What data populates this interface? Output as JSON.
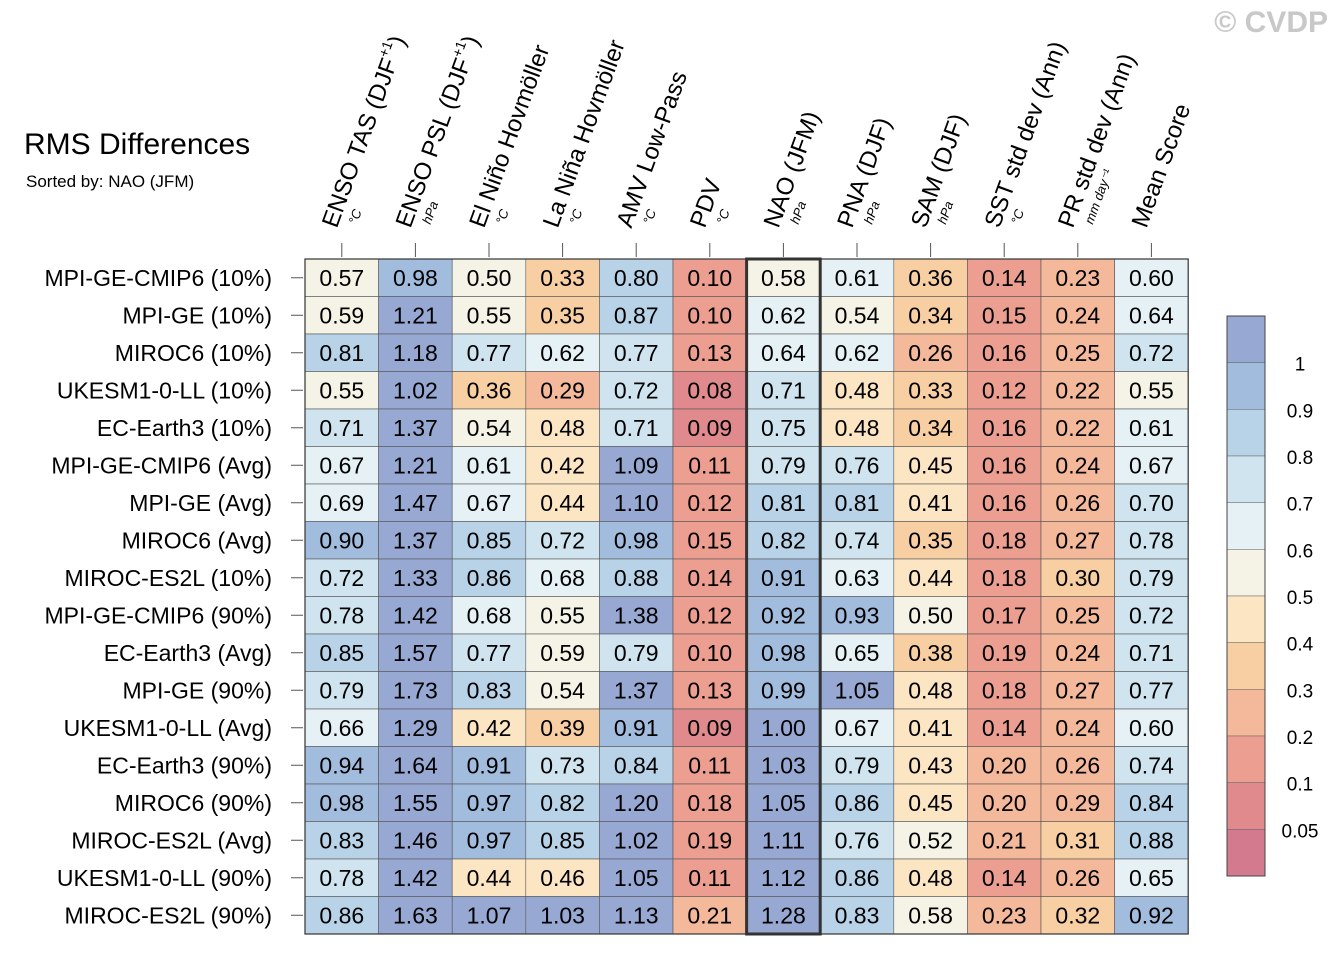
{
  "watermark": "© CVDP",
  "chart_data": {
    "type": "heatmap",
    "title": "RMS Differences",
    "subtitle": "Sorted by: NAO (JFM)",
    "highlight_column": 6,
    "columns": [
      {
        "label": "ENSO TAS (DJF",
        "sup": "+1",
        "close": ")",
        "unit": "°C"
      },
      {
        "label": "ENSO PSL (DJF",
        "sup": "+1",
        "close": ")",
        "unit": "hPa"
      },
      {
        "label": "El Niño Hovmöller",
        "sup": "",
        "close": "",
        "unit": "°C"
      },
      {
        "label": "La Niña Hovmöller",
        "sup": "",
        "close": "",
        "unit": "°C"
      },
      {
        "label": "AMV Low-Pass",
        "sup": "",
        "close": "",
        "unit": "°C"
      },
      {
        "label": "PDV",
        "sup": "",
        "close": "",
        "unit": "°C"
      },
      {
        "label": "NAO (JFM)",
        "sup": "",
        "close": "",
        "unit": "hPa"
      },
      {
        "label": "PNA (DJF)",
        "sup": "",
        "close": "",
        "unit": "hPa"
      },
      {
        "label": "SAM (DJF)",
        "sup": "",
        "close": "",
        "unit": "hPa"
      },
      {
        "label": "SST std dev (Ann)",
        "sup": "",
        "close": "",
        "unit": "°C"
      },
      {
        "label": "PR std dev (Ann)",
        "sup": "",
        "close": "",
        "unit": "mm day⁻¹"
      },
      {
        "label": "Mean Score",
        "sup": "",
        "close": "",
        "unit": ""
      }
    ],
    "rows": [
      {
        "name": "MPI-GE-CMIP6 (10%)",
        "values": [
          0.57,
          0.98,
          0.5,
          0.33,
          0.8,
          0.1,
          0.58,
          0.61,
          0.36,
          0.14,
          0.23,
          0.6
        ]
      },
      {
        "name": "MPI-GE (10%)",
        "values": [
          0.59,
          1.21,
          0.55,
          0.35,
          0.87,
          0.1,
          0.62,
          0.54,
          0.34,
          0.15,
          0.24,
          0.64
        ]
      },
      {
        "name": "MIROC6 (10%)",
        "values": [
          0.81,
          1.18,
          0.77,
          0.62,
          0.77,
          0.13,
          0.64,
          0.62,
          0.26,
          0.16,
          0.25,
          0.72
        ]
      },
      {
        "name": "UKESM1-0-LL (10%)",
        "values": [
          0.55,
          1.02,
          0.36,
          0.29,
          0.72,
          0.08,
          0.71,
          0.48,
          0.33,
          0.12,
          0.22,
          0.55
        ]
      },
      {
        "name": "EC-Earth3 (10%)",
        "values": [
          0.71,
          1.37,
          0.54,
          0.48,
          0.71,
          0.09,
          0.75,
          0.48,
          0.34,
          0.16,
          0.22,
          0.61
        ]
      },
      {
        "name": "MPI-GE-CMIP6 (Avg)",
        "values": [
          0.67,
          1.21,
          0.61,
          0.42,
          1.09,
          0.11,
          0.79,
          0.76,
          0.45,
          0.16,
          0.24,
          0.67
        ]
      },
      {
        "name": "MPI-GE (Avg)",
        "values": [
          0.69,
          1.47,
          0.67,
          0.44,
          1.1,
          0.12,
          0.81,
          0.81,
          0.41,
          0.16,
          0.26,
          0.7
        ]
      },
      {
        "name": "MIROC6 (Avg)",
        "values": [
          0.9,
          1.37,
          0.85,
          0.72,
          0.98,
          0.15,
          0.82,
          0.74,
          0.35,
          0.18,
          0.27,
          0.78
        ]
      },
      {
        "name": "MIROC-ES2L (10%)",
        "values": [
          0.72,
          1.33,
          0.86,
          0.68,
          0.88,
          0.14,
          0.91,
          0.63,
          0.44,
          0.18,
          0.3,
          0.79
        ]
      },
      {
        "name": "MPI-GE-CMIP6 (90%)",
        "values": [
          0.78,
          1.42,
          0.68,
          0.55,
          1.38,
          0.12,
          0.92,
          0.93,
          0.5,
          0.17,
          0.25,
          0.72
        ]
      },
      {
        "name": "EC-Earth3 (Avg)",
        "values": [
          0.85,
          1.57,
          0.77,
          0.59,
          0.79,
          0.1,
          0.98,
          0.65,
          0.38,
          0.19,
          0.24,
          0.71
        ]
      },
      {
        "name": "MPI-GE (90%)",
        "values": [
          0.79,
          1.73,
          0.83,
          0.54,
          1.37,
          0.13,
          0.99,
          1.05,
          0.48,
          0.18,
          0.27,
          0.77
        ]
      },
      {
        "name": "UKESM1-0-LL (Avg)",
        "values": [
          0.66,
          1.29,
          0.42,
          0.39,
          0.91,
          0.09,
          1.0,
          0.67,
          0.41,
          0.14,
          0.24,
          0.6
        ]
      },
      {
        "name": "EC-Earth3 (90%)",
        "values": [
          0.94,
          1.64,
          0.91,
          0.73,
          0.84,
          0.11,
          1.03,
          0.79,
          0.43,
          0.2,
          0.26,
          0.74
        ]
      },
      {
        "name": "MIROC6 (90%)",
        "values": [
          0.98,
          1.55,
          0.97,
          0.82,
          1.2,
          0.18,
          1.05,
          0.86,
          0.45,
          0.2,
          0.29,
          0.84
        ]
      },
      {
        "name": "MIROC-ES2L (Avg)",
        "values": [
          0.83,
          1.46,
          0.97,
          0.85,
          1.02,
          0.19,
          1.11,
          0.76,
          0.52,
          0.21,
          0.31,
          0.88
        ]
      },
      {
        "name": "UKESM1-0-LL (90%)",
        "values": [
          0.78,
          1.42,
          0.44,
          0.46,
          1.05,
          0.11,
          1.12,
          0.86,
          0.48,
          0.14,
          0.26,
          0.65
        ]
      },
      {
        "name": "MIROC-ES2L (90%)",
        "values": [
          0.86,
          1.63,
          1.07,
          1.03,
          1.13,
          0.21,
          1.28,
          0.83,
          0.58,
          0.23,
          0.32,
          0.92
        ]
      }
    ],
    "colorbar": {
      "levels": [
        0.05,
        0.1,
        0.2,
        0.3,
        0.4,
        0.5,
        0.6,
        0.7,
        0.8,
        0.9,
        1
      ],
      "labels": [
        "0.05",
        "0.1",
        "0.2",
        "0.3",
        "0.4",
        "0.5",
        "0.6",
        "0.7",
        "0.8",
        "0.9",
        "1"
      ],
      "colors": [
        "#d47a8e",
        "#e08a8e",
        "#ec9f91",
        "#f4b89a",
        "#f8cfa3",
        "#fbe5c2",
        "#f4f3e6",
        "#e6f1f5",
        "#cfe4ef",
        "#b8d3e7",
        "#a2bcdd",
        "#97a8d3"
      ]
    }
  }
}
